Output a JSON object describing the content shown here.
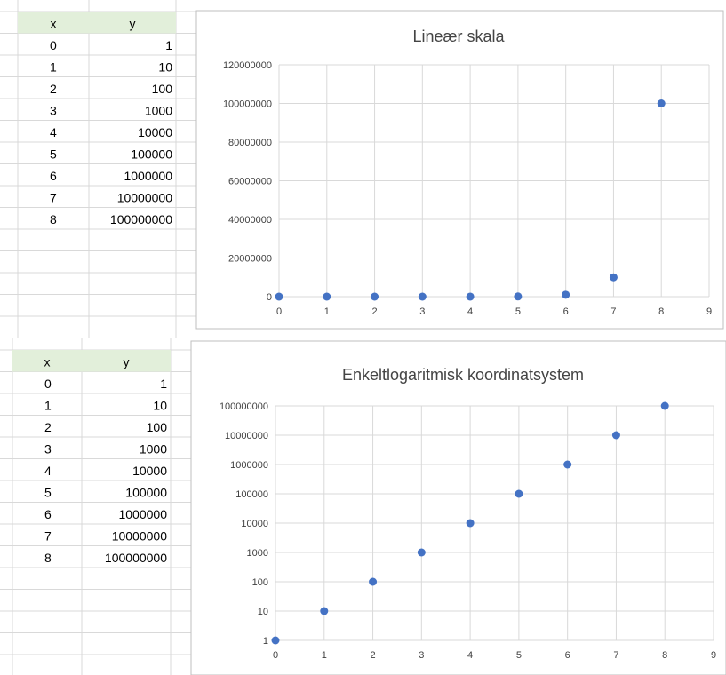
{
  "colors": {
    "header_fill": "#e2efda",
    "sheet_grid": "#d9d9d9",
    "chart_border": "#bfbfbf",
    "plot_grid": "#d9d9d9",
    "marker": "#4472c4"
  },
  "top_table": {
    "headers": [
      "x",
      "y"
    ],
    "rows": [
      [
        "0",
        "1"
      ],
      [
        "1",
        "10"
      ],
      [
        "2",
        "100"
      ],
      [
        "3",
        "1000"
      ],
      [
        "4",
        "10000"
      ],
      [
        "5",
        "100000"
      ],
      [
        "6",
        "1000000"
      ],
      [
        "7",
        "10000000"
      ],
      [
        "8",
        "100000000"
      ]
    ]
  },
  "bottom_table": {
    "headers": [
      "x",
      "y"
    ],
    "rows": [
      [
        "0",
        "1"
      ],
      [
        "1",
        "10"
      ],
      [
        "2",
        "100"
      ],
      [
        "3",
        "1000"
      ],
      [
        "4",
        "10000"
      ],
      [
        "5",
        "100000"
      ],
      [
        "6",
        "1000000"
      ],
      [
        "7",
        "10000000"
      ],
      [
        "8",
        "100000000"
      ]
    ]
  },
  "chart_data": [
    {
      "type": "scatter",
      "title": "Lineær skala",
      "xlabel": "",
      "ylabel": "",
      "x": [
        0,
        1,
        2,
        3,
        4,
        5,
        6,
        7,
        8
      ],
      "y": [
        1,
        10,
        100,
        1000,
        10000,
        100000,
        1000000,
        10000000,
        100000000
      ],
      "xlim": [
        0,
        9
      ],
      "ylim": [
        0,
        120000000
      ],
      "yscale": "linear",
      "x_ticks": [
        "0",
        "1",
        "2",
        "3",
        "4",
        "5",
        "6",
        "7",
        "8",
        "9"
      ],
      "y_ticks": [
        "0",
        "20000000",
        "40000000",
        "60000000",
        "80000000",
        "100000000",
        "120000000"
      ],
      "grid": true,
      "legend": "none"
    },
    {
      "type": "scatter",
      "title": "Enkeltlogaritmisk koordinatsystem",
      "xlabel": "",
      "ylabel": "",
      "x": [
        0,
        1,
        2,
        3,
        4,
        5,
        6,
        7,
        8
      ],
      "y": [
        1,
        10,
        100,
        1000,
        10000,
        100000,
        1000000,
        10000000,
        100000000
      ],
      "xlim": [
        0,
        9
      ],
      "ylim": [
        1,
        100000000
      ],
      "yscale": "log",
      "x_ticks": [
        "0",
        "1",
        "2",
        "3",
        "4",
        "5",
        "6",
        "7",
        "8",
        "9"
      ],
      "y_ticks": [
        "1",
        "10",
        "100",
        "1000",
        "10000",
        "100000",
        "1000000",
        "10000000",
        "100000000"
      ],
      "grid": true,
      "legend": "none"
    }
  ]
}
